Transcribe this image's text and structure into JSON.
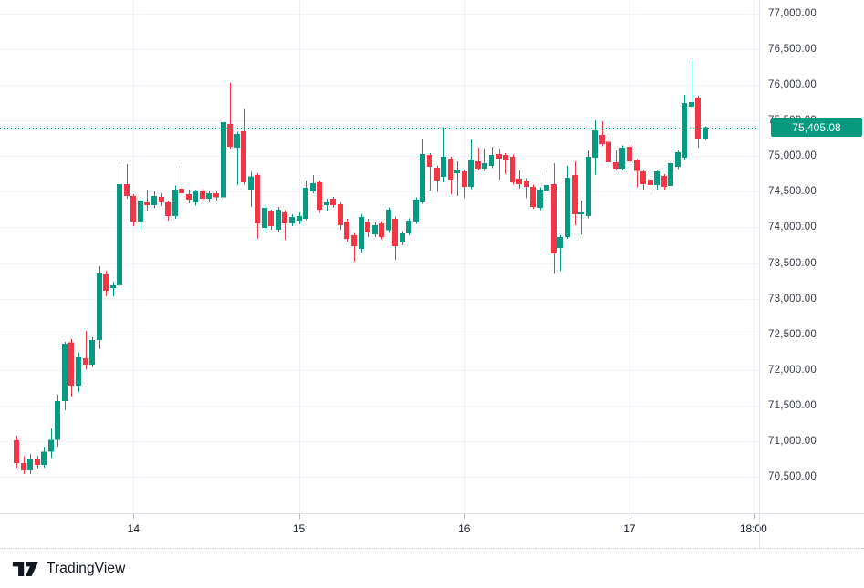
{
  "current_price": {
    "label": "75,405.08",
    "value": 75405.08
  },
  "price_axis": {
    "labels": [
      "77,000.00",
      "76,500.00",
      "76,000.00",
      "75,500.00",
      "75,000.00",
      "74,500.00",
      "74,000.00",
      "73,500.00",
      "73,000.00",
      "72,500.00",
      "72,000.00",
      "71,500.00",
      "71,000.00",
      "70,500.00"
    ],
    "values": [
      77000,
      76500,
      76000,
      75500,
      75000,
      74500,
      74000,
      73500,
      73000,
      72500,
      72000,
      71500,
      71000,
      70500
    ]
  },
  "time_axis": {
    "ticks": [
      {
        "label": "14",
        "index": 17
      },
      {
        "label": "15",
        "index": 41
      },
      {
        "label": "16",
        "index": 65
      },
      {
        "label": "17",
        "index": 89
      },
      {
        "label": "18:00",
        "index": 107
      }
    ]
  },
  "footer": {
    "brand": "TradingView"
  },
  "colors": {
    "up": "#089981",
    "down": "#f23645",
    "grid": "#f0f3fa",
    "axis_border": "#e0e3eb",
    "axis_text": "#363a45",
    "time_text": "#131722",
    "badge_bg": "#089981",
    "badge_text": "#ffffff",
    "price_line": "#089981",
    "background": "#ffffff",
    "brand": "#131722"
  },
  "chart_data": {
    "type": "candlestick",
    "title": "",
    "interval": "1 hour",
    "ylim": [
      69990,
      77190
    ],
    "grid": true,
    "legend_position": "none",
    "columns": [
      "time",
      "open",
      "high",
      "low",
      "close"
    ],
    "candles": [
      [
        "13 07:00",
        71010,
        71075,
        70630,
        70690
      ],
      [
        "13 08:00",
        70690,
        70790,
        70540,
        70590
      ],
      [
        "13 09:00",
        70590,
        70820,
        70540,
        70740
      ],
      [
        "13 10:00",
        70740,
        70795,
        70615,
        70665
      ],
      [
        "13 11:00",
        70665,
        70920,
        70625,
        70855
      ],
      [
        "13 12:00",
        70855,
        71180,
        70760,
        71020
      ],
      [
        "13 13:00",
        71020,
        71650,
        70920,
        71560
      ],
      [
        "13 14:00",
        71560,
        72395,
        71435,
        72370
      ],
      [
        "13 15:00",
        72390,
        72430,
        71625,
        71780
      ],
      [
        "13 16:00",
        71780,
        72240,
        71690,
        72175
      ],
      [
        "13 17:00",
        72165,
        72550,
        72010,
        72075
      ],
      [
        "13 18:00",
        72075,
        72460,
        72035,
        72420
      ],
      [
        "13 19:00",
        72420,
        73455,
        72290,
        73355
      ],
      [
        "13 20:00",
        73340,
        73390,
        73035,
        73110
      ],
      [
        "13 21:00",
        73150,
        73240,
        73035,
        73190
      ],
      [
        "13 22:00",
        73190,
        74865,
        73165,
        74610
      ],
      [
        "13 23:00",
        74610,
        74890,
        74405,
        74440
      ],
      [
        "14 00:00",
        74440,
        74465,
        74020,
        74080
      ],
      [
        "14 01:00",
        74080,
        74400,
        73965,
        74375
      ],
      [
        "14 02:00",
        74350,
        74530,
        74225,
        74315
      ],
      [
        "14 03:00",
        74315,
        74505,
        74275,
        74440
      ],
      [
        "14 04:00",
        74430,
        74480,
        74300,
        74350
      ],
      [
        "14 05:00",
        74350,
        74380,
        74095,
        74160
      ],
      [
        "14 06:00",
        74160,
        74590,
        74120,
        74530
      ],
      [
        "14 07:00",
        74545,
        74860,
        74440,
        74480
      ],
      [
        "14 08:00",
        74465,
        74530,
        74340,
        74390
      ],
      [
        "14 09:00",
        74350,
        74530,
        74310,
        74515
      ],
      [
        "14 10:00",
        74515,
        74540,
        74370,
        74400
      ],
      [
        "14 11:00",
        74400,
        74520,
        74350,
        74480
      ],
      [
        "14 12:00",
        74480,
        74510,
        74380,
        74420
      ],
      [
        "14 13:00",
        74420,
        75530,
        74390,
        75480
      ],
      [
        "14 14:00",
        75450,
        76030,
        75105,
        75130
      ],
      [
        "14 15:00",
        75120,
        75340,
        74595,
        75310
      ],
      [
        "14 16:00",
        75350,
        75665,
        74600,
        74635
      ],
      [
        "14 17:00",
        74530,
        74780,
        74290,
        74715
      ],
      [
        "14 18:00",
        74735,
        74760,
        73840,
        74055
      ],
      [
        "14 19:00",
        73995,
        74315,
        73930,
        74275
      ],
      [
        "14 20:00",
        74225,
        74250,
        73965,
        74020
      ],
      [
        "14 21:00",
        73965,
        74290,
        73930,
        74250
      ],
      [
        "14 22:00",
        74210,
        74240,
        73825,
        74055
      ],
      [
        "14 23:00",
        74055,
        74185,
        74020,
        74145
      ],
      [
        "15 00:00",
        74095,
        74210,
        74045,
        74160
      ],
      [
        "15 01:00",
        74120,
        74660,
        74100,
        74555
      ],
      [
        "15 02:00",
        74505,
        74735,
        74480,
        74620
      ],
      [
        "15 03:00",
        74630,
        74660,
        74210,
        74250
      ],
      [
        "15 04:00",
        74315,
        74400,
        74225,
        74350
      ],
      [
        "15 05:00",
        74400,
        74430,
        74280,
        74315
      ],
      [
        "15 06:00",
        74325,
        74350,
        73965,
        74030
      ],
      [
        "15 07:00",
        74080,
        74120,
        73800,
        73840
      ],
      [
        "15 08:00",
        73890,
        73920,
        73520,
        73735
      ],
      [
        "15 09:00",
        73700,
        74185,
        73650,
        74145
      ],
      [
        "15 10:00",
        74080,
        74120,
        73865,
        73930
      ],
      [
        "15 11:00",
        73905,
        74070,
        73865,
        74030
      ],
      [
        "15 12:00",
        74055,
        74090,
        73830,
        73865
      ],
      [
        "15 13:00",
        73960,
        74280,
        73920,
        74250
      ],
      [
        "15 14:00",
        74120,
        74150,
        73545,
        73735
      ],
      [
        "15 15:00",
        73790,
        73950,
        73750,
        73915
      ],
      [
        "15 16:00",
        73915,
        74130,
        73890,
        74095
      ],
      [
        "15 17:00",
        74080,
        74420,
        74050,
        74390
      ],
      [
        "15 18:00",
        74350,
        75250,
        74330,
        75030
      ],
      [
        "15 19:00",
        75015,
        75040,
        74520,
        74850
      ],
      [
        "15 20:00",
        74840,
        74870,
        74500,
        74660
      ],
      [
        "15 21:00",
        74710,
        75410,
        74630,
        74990
      ],
      [
        "15 22:00",
        74965,
        74990,
        74465,
        74670
      ],
      [
        "15 23:00",
        74760,
        74930,
        74440,
        74800
      ],
      [
        "16 00:00",
        74785,
        74810,
        74415,
        74570
      ],
      [
        "16 01:00",
        74570,
        75235,
        74540,
        74950
      ],
      [
        "16 02:00",
        74925,
        75120,
        74800,
        74825
      ],
      [
        "16 03:00",
        74825,
        75105,
        74790,
        74900
      ],
      [
        "16 04:00",
        74865,
        75130,
        74830,
        75015
      ],
      [
        "16 05:00",
        75030,
        75105,
        74670,
        74965
      ],
      [
        "16 06:00",
        75015,
        75040,
        74750,
        74940
      ],
      [
        "16 07:00",
        74990,
        75020,
        74600,
        74635
      ],
      [
        "16 08:00",
        74685,
        74800,
        74545,
        74605
      ],
      [
        "16 09:00",
        74660,
        74690,
        74415,
        74570
      ],
      [
        "16 10:00",
        74570,
        74600,
        74260,
        74285
      ],
      [
        "16 11:00",
        74275,
        74560,
        74240,
        74530
      ],
      [
        "16 12:00",
        74515,
        74800,
        74415,
        74595
      ],
      [
        "16 13:00",
        74605,
        74900,
        73350,
        73635
      ],
      [
        "16 14:00",
        73710,
        73890,
        73390,
        73865
      ],
      [
        "16 15:00",
        73865,
        74865,
        73840,
        74695
      ],
      [
        "16 16:00",
        74735,
        74925,
        74030,
        74185
      ],
      [
        "16 17:00",
        74185,
        74375,
        73905,
        74210
      ],
      [
        "16 18:00",
        74160,
        75080,
        74130,
        74990
      ],
      [
        "16 19:00",
        74980,
        75500,
        74740,
        75360
      ],
      [
        "16 20:00",
        75300,
        75490,
        75140,
        75170
      ],
      [
        "16 21:00",
        75200,
        75270,
        74890,
        74915
      ],
      [
        "16 22:00",
        74915,
        75080,
        74800,
        74825
      ],
      [
        "16 23:00",
        74825,
        75150,
        74800,
        75120
      ],
      [
        "17 00:00",
        75130,
        75160,
        74900,
        74925
      ],
      [
        "17 01:00",
        74940,
        74960,
        74560,
        74790
      ],
      [
        "17 02:00",
        74785,
        74800,
        74530,
        74605
      ],
      [
        "17 03:00",
        74670,
        74700,
        74505,
        74595
      ],
      [
        "17 04:00",
        74595,
        74800,
        74530,
        74785
      ],
      [
        "17 05:00",
        74720,
        74750,
        74530,
        74570
      ],
      [
        "17 06:00",
        74580,
        74925,
        74560,
        74900
      ],
      [
        "17 07:00",
        74850,
        75080,
        74820,
        75055
      ],
      [
        "17 08:00",
        74980,
        75860,
        74950,
        75745
      ],
      [
        "17 09:00",
        75695,
        76335,
        75680,
        75760
      ],
      [
        "17 10:00",
        75825,
        75850,
        75120,
        75245
      ],
      [
        "17 11:00",
        75245,
        75420,
        75220,
        75405.08
      ]
    ]
  }
}
